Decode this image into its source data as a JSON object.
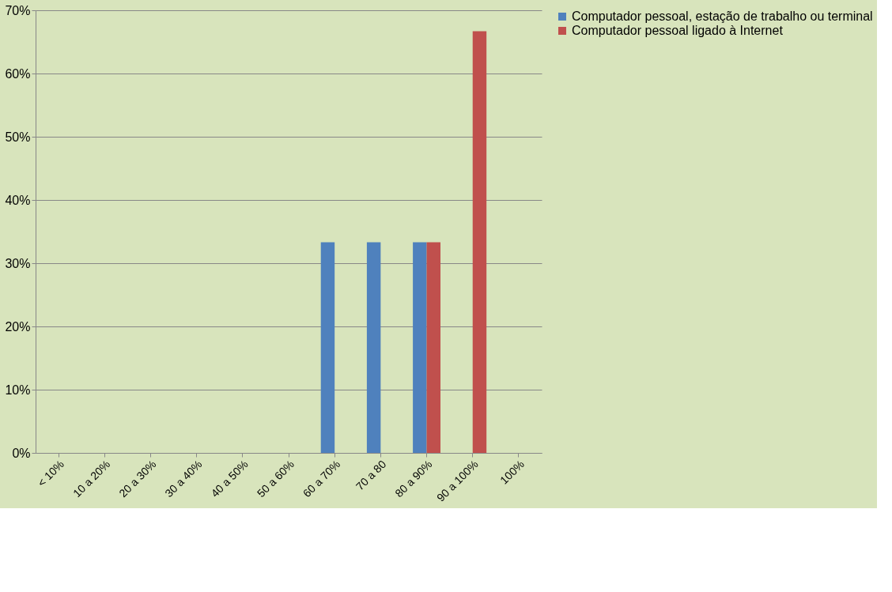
{
  "chart_data": {
    "type": "bar",
    "categories": [
      "< 10%",
      "10 a 20%",
      "20 a 30%",
      "30 a 40%",
      "40 a 50%",
      "50 a 60%",
      "60 a 70%",
      "70 a 80",
      "80 a 90%",
      "90 a 100%",
      "100%"
    ],
    "series": [
      {
        "name": "Computador pessoal, estação de trabalho ou terminal",
        "color": "#4f81bd",
        "values": [
          0,
          0,
          0,
          0,
          0,
          0,
          33.3,
          33.3,
          33.3,
          0,
          0
        ]
      },
      {
        "name": "Computador pessoal ligado à Internet",
        "color": "#c0504d",
        "values": [
          0,
          0,
          0,
          0,
          0,
          0,
          0,
          0,
          33.3,
          66.7,
          0
        ]
      }
    ],
    "ylim": [
      0,
      70
    ],
    "yticks": [
      {
        "value": 0,
        "label": "0%"
      },
      {
        "value": 10,
        "label": "10%"
      },
      {
        "value": 20,
        "label": "20%"
      },
      {
        "value": 30,
        "label": "30%"
      },
      {
        "value": 40,
        "label": "40%"
      },
      {
        "value": 50,
        "label": "50%"
      },
      {
        "value": 60,
        "label": "60%"
      },
      {
        "value": 70,
        "label": "70%"
      }
    ],
    "grid": "y",
    "legend": "right"
  }
}
